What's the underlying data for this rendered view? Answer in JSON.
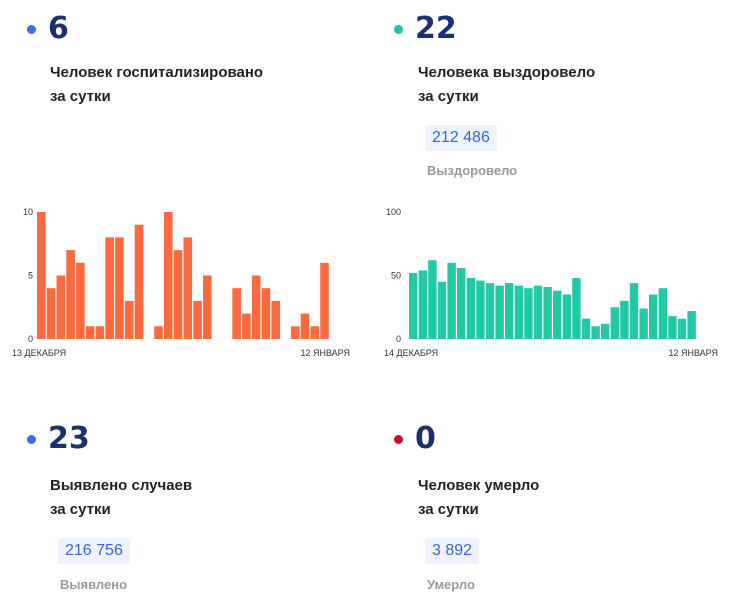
{
  "colors": {
    "blue_dot": "#3b6ce0",
    "teal_dot": "#1ec4a3",
    "red_dot": "#c8102e",
    "orange_bars": "#fb6a3f",
    "teal_bars": "#23c9a5",
    "number": "#1c2f6e",
    "pill_text": "#3c63d8",
    "pill_bg": "#eef2fb"
  },
  "cards": {
    "hospitalized": {
      "value": "6",
      "label_line1": "Человек госпитализировано",
      "label_line2": "за сутки"
    },
    "recovered": {
      "value": "22",
      "label_line1": "Человека выздоровело",
      "label_line2": "за сутки",
      "total": "212 486",
      "total_label": "Выздоровело"
    },
    "cases": {
      "value": "23",
      "label_line1": "Выявлено случаев",
      "label_line2": "за сутки",
      "total": "216 756",
      "total_label": "Выявлено"
    },
    "deaths": {
      "value": "0",
      "label_line1": "Человек умерло",
      "label_line2": "за сутки",
      "total": "3 892",
      "total_label": "Умерло"
    }
  },
  "chart_data": [
    {
      "type": "bar",
      "y_ticks": [
        "10",
        "5",
        "0"
      ],
      "ylim": [
        0,
        10
      ],
      "x_start_label": "13 ДЕКАБРЯ",
      "x_end_label": "12 ЯНВАРЯ",
      "values": [
        10,
        4,
        5,
        7,
        6,
        1,
        1,
        8,
        8,
        3,
        9,
        null,
        1,
        10,
        7,
        8,
        3,
        5,
        null,
        null,
        4,
        2,
        5,
        4,
        3,
        null,
        1,
        2,
        1,
        6
      ]
    },
    {
      "type": "bar",
      "y_ticks": [
        "100",
        "50",
        "0"
      ],
      "ylim": [
        0,
        100
      ],
      "x_start_label": "14 ДЕКАБРЯ",
      "x_end_label": "12 ЯНВАРЯ",
      "values": [
        52,
        54,
        62,
        45,
        60,
        56,
        48,
        46,
        44,
        42,
        44,
        42,
        40,
        42,
        41,
        38,
        35,
        48,
        16,
        10,
        12,
        25,
        30,
        44,
        24,
        35,
        40,
        18,
        16,
        22
      ]
    }
  ]
}
